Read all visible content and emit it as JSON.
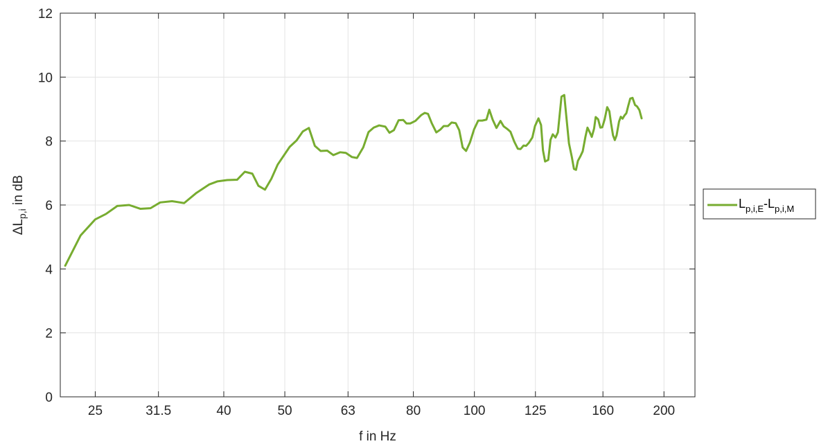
{
  "chart_data": {
    "type": "line",
    "xscale": "log",
    "xlabel": "f in Hz",
    "ylabel": {
      "base": "ΔL",
      "sub": "p,i",
      "rest": " in dB"
    },
    "xlim": [
      22,
      224
    ],
    "ylim": [
      0,
      12
    ],
    "xticks": [
      25,
      31.5,
      40,
      50,
      63,
      80,
      100,
      125,
      160,
      200
    ],
    "xtick_labels": [
      "25",
      "31.5",
      "40",
      "50",
      "63",
      "80",
      "100",
      "125",
      "160",
      "200"
    ],
    "yticks": [
      0,
      2,
      4,
      6,
      8,
      10,
      12
    ],
    "ytick_labels": [
      "0",
      "2",
      "4",
      "6",
      "8",
      "10",
      "12"
    ],
    "grid": true,
    "legend_position": "right",
    "series": [
      {
        "name": "Lp,i,E-Lp,i,M",
        "legend_label": {
          "a": "L",
          "a_sub": "p,i,E",
          "dash": "-",
          "b": "L",
          "b_sub": "p,i,M"
        },
        "color": "#77ac30",
        "points": [
          [
            22.4,
            4.1
          ],
          [
            23.7,
            5.05
          ],
          [
            25.0,
            5.55
          ],
          [
            26.0,
            5.72
          ],
          [
            27.1,
            5.97
          ],
          [
            28.3,
            6.0
          ],
          [
            29.5,
            5.88
          ],
          [
            30.6,
            5.9
          ],
          [
            31.7,
            6.08
          ],
          [
            33.1,
            6.12
          ],
          [
            34.6,
            6.06
          ],
          [
            36.2,
            6.38
          ],
          [
            37.9,
            6.64
          ],
          [
            39.1,
            6.74
          ],
          [
            40.5,
            6.78
          ],
          [
            42.0,
            6.79
          ],
          [
            43.2,
            7.04
          ],
          [
            44.4,
            6.98
          ],
          [
            45.4,
            6.6
          ],
          [
            46.5,
            6.48
          ],
          [
            47.6,
            6.82
          ],
          [
            48.7,
            7.26
          ],
          [
            50.9,
            7.82
          ],
          [
            52.2,
            8.02
          ],
          [
            53.4,
            8.3
          ],
          [
            54.6,
            8.41
          ],
          [
            55.8,
            7.85
          ],
          [
            57.0,
            7.69
          ],
          [
            58.4,
            7.7
          ],
          [
            59.7,
            7.56
          ],
          [
            61.2,
            7.65
          ],
          [
            62.5,
            7.63
          ],
          [
            63.9,
            7.5
          ],
          [
            65.1,
            7.47
          ],
          [
            66.6,
            7.8
          ],
          [
            67.9,
            8.28
          ],
          [
            69.2,
            8.42
          ],
          [
            70.6,
            8.49
          ],
          [
            72.2,
            8.45
          ],
          [
            73.3,
            8.26
          ],
          [
            74.5,
            8.34
          ],
          [
            75.8,
            8.65
          ],
          [
            77.1,
            8.66
          ],
          [
            78.0,
            8.55
          ],
          [
            79.1,
            8.55
          ],
          [
            80.6,
            8.63
          ],
          [
            82.3,
            8.81
          ],
          [
            83.4,
            8.88
          ],
          [
            84.4,
            8.85
          ],
          [
            85.6,
            8.55
          ],
          [
            87.0,
            8.27
          ],
          [
            88.3,
            8.36
          ],
          [
            89.4,
            8.47
          ],
          [
            90.8,
            8.47
          ],
          [
            92.0,
            8.58
          ],
          [
            93.4,
            8.56
          ],
          [
            94.6,
            8.34
          ],
          [
            95.8,
            7.8
          ],
          [
            97.0,
            7.69
          ],
          [
            98.4,
            7.96
          ],
          [
            99.9,
            8.37
          ],
          [
            101.4,
            8.64
          ],
          [
            102.9,
            8.64
          ],
          [
            104.5,
            8.67
          ],
          [
            105.6,
            8.98
          ],
          [
            106.9,
            8.67
          ],
          [
            108.4,
            8.41
          ],
          [
            110.0,
            8.63
          ],
          [
            111.3,
            8.46
          ],
          [
            112.9,
            8.37
          ],
          [
            114.1,
            8.29
          ],
          [
            115.7,
            7.98
          ],
          [
            117.2,
            7.76
          ],
          [
            118.4,
            7.75
          ],
          [
            119.7,
            7.86
          ],
          [
            120.8,
            7.85
          ],
          [
            122.1,
            7.95
          ],
          [
            123.6,
            8.11
          ],
          [
            124.8,
            8.47
          ],
          [
            126.4,
            8.71
          ],
          [
            127.6,
            8.5
          ],
          [
            128.5,
            7.71
          ],
          [
            129.5,
            7.36
          ],
          [
            131.0,
            7.41
          ],
          [
            132.1,
            8.04
          ],
          [
            133.2,
            8.21
          ],
          [
            134.5,
            8.11
          ],
          [
            135.7,
            8.27
          ],
          [
            137.5,
            9.39
          ],
          [
            138.9,
            9.44
          ],
          [
            139.9,
            8.8
          ],
          [
            141.3,
            7.93
          ],
          [
            142.8,
            7.5
          ],
          [
            143.9,
            7.13
          ],
          [
            145.0,
            7.1
          ],
          [
            146.0,
            7.38
          ],
          [
            147.3,
            7.52
          ],
          [
            148.6,
            7.68
          ],
          [
            150.1,
            8.14
          ],
          [
            151.2,
            8.42
          ],
          [
            152.5,
            8.27
          ],
          [
            153.6,
            8.13
          ],
          [
            154.9,
            8.39
          ],
          [
            155.8,
            8.75
          ],
          [
            157.2,
            8.68
          ],
          [
            158.5,
            8.42
          ],
          [
            159.6,
            8.43
          ],
          [
            161.0,
            8.68
          ],
          [
            162.5,
            9.06
          ],
          [
            163.8,
            8.93
          ],
          [
            164.8,
            8.56
          ],
          [
            166.0,
            8.18
          ],
          [
            167.1,
            8.03
          ],
          [
            168.2,
            8.18
          ],
          [
            169.7,
            8.61
          ],
          [
            170.8,
            8.76
          ],
          [
            171.9,
            8.7
          ],
          [
            173.1,
            8.8
          ],
          [
            174.3,
            8.87
          ],
          [
            175.5,
            9.1
          ],
          [
            176.8,
            9.33
          ],
          [
            178.3,
            9.35
          ],
          [
            179.9,
            9.13
          ],
          [
            181.3,
            9.08
          ],
          [
            182.8,
            8.97
          ],
          [
            184.3,
            8.71
          ]
        ]
      }
    ]
  }
}
